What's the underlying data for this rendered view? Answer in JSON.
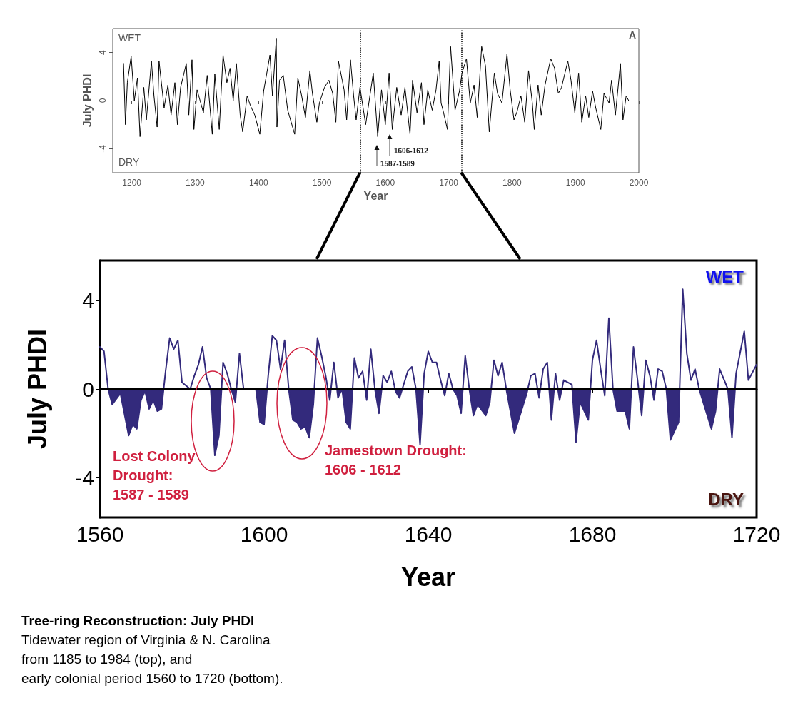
{
  "chart_data": [
    {
      "type": "line",
      "ylabel": "July PHDI",
      "xlabel": "Year",
      "color": "#000000",
      "marker": "none",
      "xlim": [
        1170,
        2000
      ],
      "xticks": [
        1200,
        1300,
        1400,
        1500,
        1600,
        1700,
        1800,
        1900,
        2000
      ],
      "ylim": [
        -6,
        6
      ],
      "yticks": [
        -4,
        0,
        4
      ],
      "x": [
        1187,
        1190,
        1193,
        1199,
        1204,
        1209,
        1213,
        1219,
        1223,
        1231,
        1235,
        1240,
        1243,
        1251,
        1257,
        1262,
        1268,
        1272,
        1277,
        1286,
        1290,
        1295,
        1298,
        1303,
        1313,
        1319,
        1327,
        1331,
        1338,
        1344,
        1350,
        1355,
        1360,
        1365,
        1371,
        1375,
        1382,
        1387,
        1394,
        1402,
        1408,
        1418,
        1422,
        1428,
        1429,
        1433,
        1439,
        1446,
        1457,
        1462,
        1468,
        1474,
        1481,
        1485,
        1492,
        1496,
        1504,
        1511,
        1517,
        1522,
        1526,
        1532,
        1535,
        1539,
        1545,
        1550,
        1554,
        1560,
        1569,
        1581,
        1588,
        1594,
        1600,
        1606,
        1611,
        1618,
        1625,
        1631,
        1639,
        1643,
        1650,
        1657,
        1661,
        1667,
        1674,
        1680,
        1685,
        1688,
        1691,
        1698,
        1703,
        1710,
        1717,
        1721,
        1728,
        1734,
        1740,
        1745,
        1752,
        1758,
        1764,
        1772,
        1777,
        1784,
        1792,
        1797,
        1803,
        1808,
        1814,
        1820,
        1826,
        1832,
        1835,
        1841,
        1846,
        1852,
        1861,
        1867,
        1873,
        1878,
        1888,
        1893,
        1899,
        1905,
        1910,
        1916,
        1921,
        1927,
        1932,
        1940,
        1945,
        1953,
        1957,
        1963,
        1971,
        1975,
        1980,
        1984
      ],
      "values": [
        3.1,
        -2,
        1.5,
        3.7,
        0,
        1.9,
        -3,
        1.1,
        -1.6,
        3.3,
        0.4,
        -2.2,
        3.3,
        -0.6,
        1.3,
        -1.2,
        1.5,
        -2,
        1.1,
        3.1,
        -1.2,
        3.4,
        -2.4,
        0.9,
        -1,
        2.1,
        -2.8,
        2.2,
        -2.4,
        3.8,
        1.5,
        2.7,
        0,
        3.1,
        -1.2,
        -2.6,
        0.4,
        -0.4,
        -1.2,
        -2.8,
        0.8,
        3.8,
        0.4,
        5.2,
        -2.2,
        1.7,
        2.1,
        -0.8,
        -2.8,
        1.9,
        0.4,
        -1.4,
        2.5,
        0.6,
        -1.8,
        -0.2,
        1.1,
        1.7,
        0.6,
        -1.8,
        3.3,
        1.7,
        0.9,
        -1.6,
        3.4,
        0.4,
        -1.6,
        1.1,
        -2,
        2.3,
        -3,
        0.9,
        -2,
        2.3,
        -2.4,
        1.1,
        -1.2,
        1.1,
        -2.8,
        1.7,
        -1,
        1.5,
        -2,
        0.9,
        -0.8,
        0.9,
        3.3,
        -0.2,
        -0.8,
        -2.4,
        4.5,
        -0.8,
        0.8,
        2.3,
        3.5,
        -0.2,
        1.3,
        -1.4,
        4.5,
        2.9,
        -2.6,
        2.3,
        0.6,
        -0.2,
        3.9,
        0.9,
        -1.6,
        -0.9,
        0.4,
        -1.8,
        2.5,
        -0.2,
        -2.4,
        1.3,
        -1.2,
        1.3,
        3.5,
        2.7,
        0.6,
        1.1,
        3.3,
        1.7,
        -1,
        2.3,
        -1.8,
        0.4,
        -1.4,
        0.8,
        -0.6,
        -2.4,
        0.6,
        -0.2,
        1.7,
        -1.2,
        3.1,
        -1.6,
        0.4,
        0
      ],
      "ref_lines": [
        {
          "axis": "x",
          "value": 1560,
          "line_style": "dotted",
          "color": "#000000"
        },
        {
          "axis": "x",
          "value": 1720,
          "line_style": "dotted",
          "color": "#000000"
        },
        {
          "axis": "y",
          "value": 0,
          "color": "#000000"
        }
      ],
      "annotations": [
        "WET",
        "DRY",
        "A",
        "1587-1589",
        "1606-1612"
      ]
    },
    {
      "type": "area",
      "ylabel": "July PHDI",
      "xlabel": "Year",
      "color": "#332a7c",
      "marker": "none",
      "xlim": [
        1560,
        1720
      ],
      "xticks": [
        1560,
        1600,
        1640,
        1680,
        1720
      ],
      "ylim": [
        -5.8,
        5.8
      ],
      "yticks": [
        -4,
        0,
        4
      ],
      "x": [
        1560,
        1561,
        1562,
        1563,
        1565,
        1567,
        1568,
        1569,
        1570,
        1571,
        1572,
        1573,
        1574,
        1575,
        1576,
        1577,
        1578,
        1579,
        1580,
        1582,
        1583,
        1584,
        1585,
        1586,
        1587,
        1588,
        1589,
        1590,
        1591,
        1592,
        1593,
        1594,
        1595,
        1598,
        1599,
        1600,
        1601,
        1602,
        1603,
        1604,
        1605,
        1606,
        1607,
        1608,
        1609,
        1610,
        1611,
        1612,
        1613,
        1614,
        1615,
        1616,
        1617,
        1618,
        1619,
        1620,
        1621,
        1622,
        1623,
        1624,
        1625,
        1626,
        1627,
        1628,
        1629,
        1630,
        1631,
        1632,
        1633,
        1635,
        1636,
        1637,
        1638,
        1639,
        1640,
        1641,
        1642,
        1643,
        1644,
        1645,
        1646,
        1647,
        1648,
        1649,
        1650,
        1651,
        1652,
        1654,
        1655,
        1656,
        1657,
        1658,
        1659,
        1661,
        1664,
        1665,
        1666,
        1667,
        1668,
        1669,
        1670,
        1671,
        1672,
        1673,
        1675,
        1676,
        1677,
        1679,
        1680,
        1681,
        1682,
        1683,
        1684,
        1685,
        1686,
        1688,
        1689,
        1690,
        1691,
        1692,
        1693,
        1694,
        1695,
        1696,
        1697,
        1698,
        1699,
        1701,
        1702,
        1703,
        1704,
        1705,
        1706,
        1707,
        1709,
        1710,
        1711,
        1713,
        1714,
        1715,
        1717,
        1718,
        1720
      ],
      "values": [
        1.9,
        1.7,
        0,
        -0.7,
        -0.2,
        -2.1,
        -1.6,
        -1.8,
        -0.5,
        -0.1,
        -0.9,
        -0.5,
        -1,
        -0.9,
        0.8,
        2.3,
        1.8,
        2.2,
        0.3,
        0,
        0.6,
        1.1,
        1.9,
        0.5,
        0,
        -3,
        -2.1,
        1.2,
        0.7,
        0,
        -0.6,
        1.6,
        0,
        0,
        -1.5,
        -1.6,
        0.6,
        2.4,
        2.2,
        0.9,
        2.2,
        0,
        -1.4,
        -1.5,
        -1.8,
        -1.7,
        -2.2,
        -0.7,
        2.3,
        1.5,
        0.6,
        -0.5,
        1.2,
        -0.4,
        0,
        -1.5,
        -1.8,
        1.4,
        0.5,
        0.8,
        -0.5,
        1.8,
        0,
        -1.1,
        0.6,
        0.3,
        0.8,
        -0.1,
        -0.4,
        0.8,
        1,
        0,
        -2.5,
        0.7,
        1.7,
        1.2,
        1.2,
        0.4,
        -0.3,
        0.7,
        0,
        -0.3,
        -1.1,
        1.5,
        0,
        -1.2,
        -0.7,
        -1.2,
        -0.6,
        1.3,
        0.6,
        1.2,
        0,
        -2,
        -0.2,
        0.6,
        0.7,
        -0.4,
        0.9,
        1.2,
        -1.4,
        0.7,
        -0.5,
        0.4,
        0.2,
        -2.4,
        -0.6,
        -1.4,
        1.3,
        2.2,
        0.9,
        -0.3,
        3.2,
        0,
        -1,
        -1,
        -1.8,
        1.9,
        0.4,
        -1.2,
        1.3,
        0.6,
        -0.5,
        0.9,
        0.8,
        0,
        -2.3,
        -1.5,
        4.5,
        1.6,
        0.4,
        0.9,
        0,
        -0.6,
        -1.8,
        -1,
        0.9,
        0,
        -2.2,
        0.7,
        2.6,
        0.4,
        1.1
      ],
      "ref_lines": [
        {
          "axis": "y",
          "value": 0,
          "color": "#000000"
        }
      ],
      "annotations": [
        "WET",
        "DRY",
        "Lost Colony\nDrought:\n1587 - 1589",
        "Jamestown Drought:\n1606 - 1612",
        "Tree-ring Reconstruction: July PHDI",
        "Tidewater region of Virginia & N. Carolina",
        "from 1185 to 1984 (top), and",
        "early colonial period 1560 to 1720 (bottom)."
      ]
    }
  ]
}
